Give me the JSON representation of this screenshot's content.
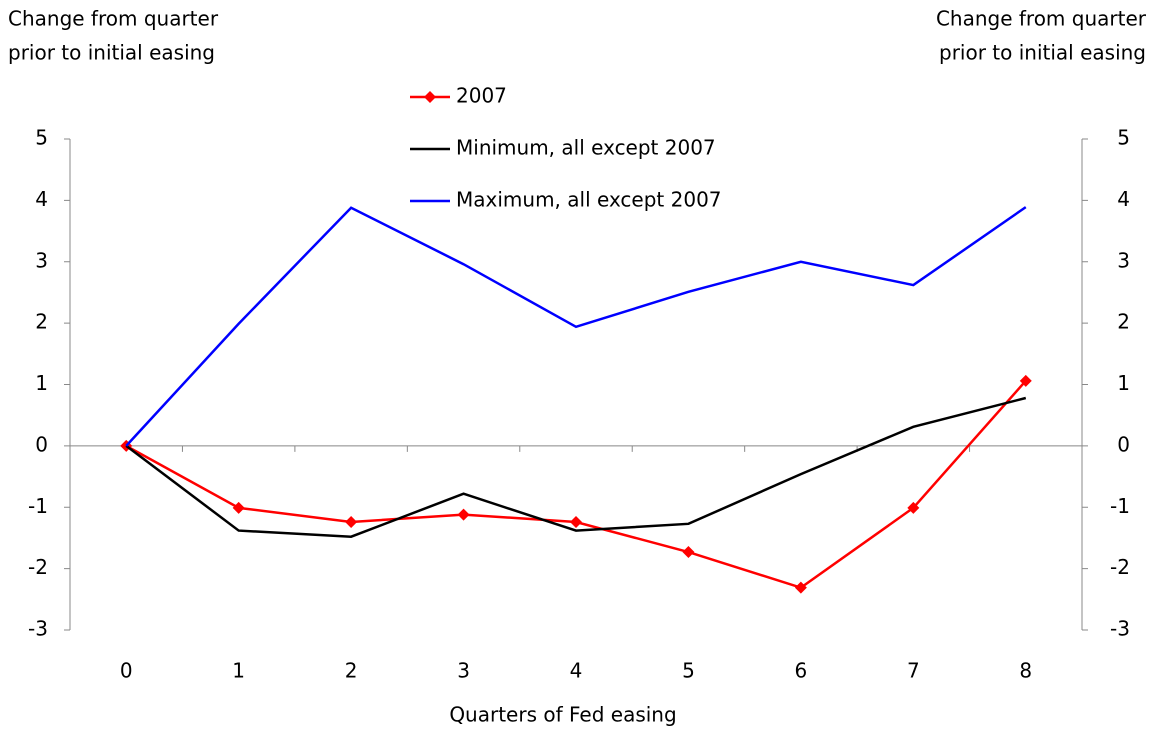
{
  "chart_data": {
    "type": "line",
    "ylabel": [
      "Change from quarter",
      "prior to initial easing"
    ],
    "y2label": [
      "Change from quarter",
      "prior to initial easing"
    ],
    "xlabel": "Quarters of Fed easing",
    "categories": [
      "0",
      "1",
      "2",
      "3",
      "4",
      "5",
      "6",
      "7",
      "8"
    ],
    "series": [
      {
        "name": "2007",
        "color": "#ff0000",
        "marker": "diamond",
        "values": [
          0,
          -1.01,
          -1.24,
          -1.12,
          -1.24,
          -1.73,
          -2.31,
          -1.01,
          1.06
        ]
      },
      {
        "name": "Minimum, all except 2007",
        "color": "#000000",
        "values": [
          0,
          -1.38,
          -1.48,
          -0.78,
          -1.38,
          -1.27,
          -0.46,
          0.31,
          0.78
        ]
      },
      {
        "name": "Maximum, all except 2007",
        "color": "#0000ff",
        "values": [
          0,
          1.99,
          3.88,
          2.96,
          1.94,
          2.51,
          3.0,
          2.62,
          3.89
        ]
      }
    ],
    "ylim": [
      -3,
      5
    ],
    "yticks": [
      -3,
      -2,
      -1,
      0,
      1,
      2,
      3,
      4,
      5
    ],
    "y2lim": [
      -3,
      5
    ],
    "y2ticks": [
      -3,
      -2,
      -1,
      0,
      1,
      2,
      3,
      4,
      5
    ],
    "grid": false
  }
}
